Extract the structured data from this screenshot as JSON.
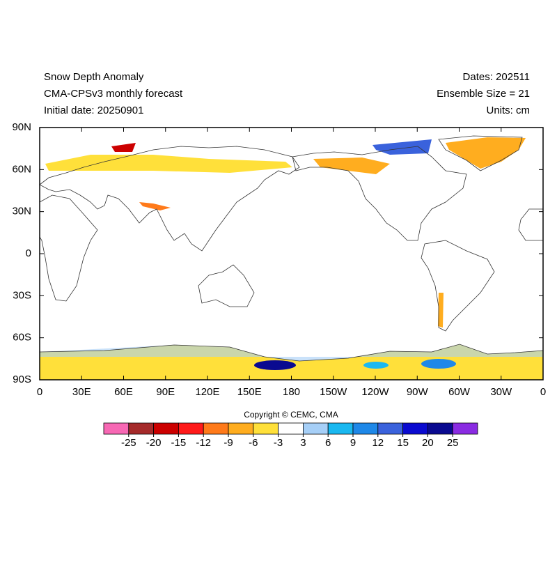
{
  "header": {
    "left": [
      "Snow Depth Anomaly",
      "CMA-CPSv3 monthly forecast",
      "Initial date: 20250901"
    ],
    "right": [
      "Dates: 202511",
      "Ensemble Size = 21",
      "Units: cm"
    ]
  },
  "map": {
    "xlim": [
      0,
      360
    ],
    "ylim": [
      -90,
      90
    ],
    "xticks": [
      0,
      {
        "value": 30,
        "label": "30E"
      },
      {
        "value": 60,
        "label": "60E"
      },
      {
        "value": 90,
        "label": "90E"
      },
      {
        "value": 120,
        "label": "120E"
      },
      {
        "value": 150,
        "label": "150E"
      },
      180,
      {
        "value": 210,
        "label": "150W"
      },
      {
        "value": 240,
        "label": "120W"
      },
      {
        "value": 270,
        "label": "90W"
      },
      {
        "value": 300,
        "label": "60W"
      },
      {
        "value": 330,
        "label": "30W"
      },
      {
        "value": 360,
        "label": "0"
      }
    ],
    "yticks": [
      {
        "value": 90,
        "label": "90N"
      },
      {
        "value": 60,
        "label": "60N"
      },
      {
        "value": 30,
        "label": "30N"
      },
      0,
      {
        "value": -30,
        "label": "30S"
      },
      {
        "value": -60,
        "label": "60S"
      },
      {
        "value": -90,
        "label": "90S"
      }
    ]
  },
  "copyright": "Copyright © CEMC, CMA",
  "colorbar": {
    "colors": [
      "#f768b4",
      "#a52a2a",
      "#cc0000",
      "#ff1a1a",
      "#ff7a1a",
      "#ffad1f",
      "#ffe03a",
      "#ffffff",
      "#a6cff7",
      "#1ab8f0",
      "#1e88e8",
      "#3a62dc",
      "#0a0ad0",
      "#0a0a90",
      "#8a2be2"
    ],
    "levels": [
      -25,
      -20,
      -15,
      -12,
      -9,
      -6,
      -3,
      3,
      6,
      9,
      12,
      15,
      20,
      25
    ]
  }
}
